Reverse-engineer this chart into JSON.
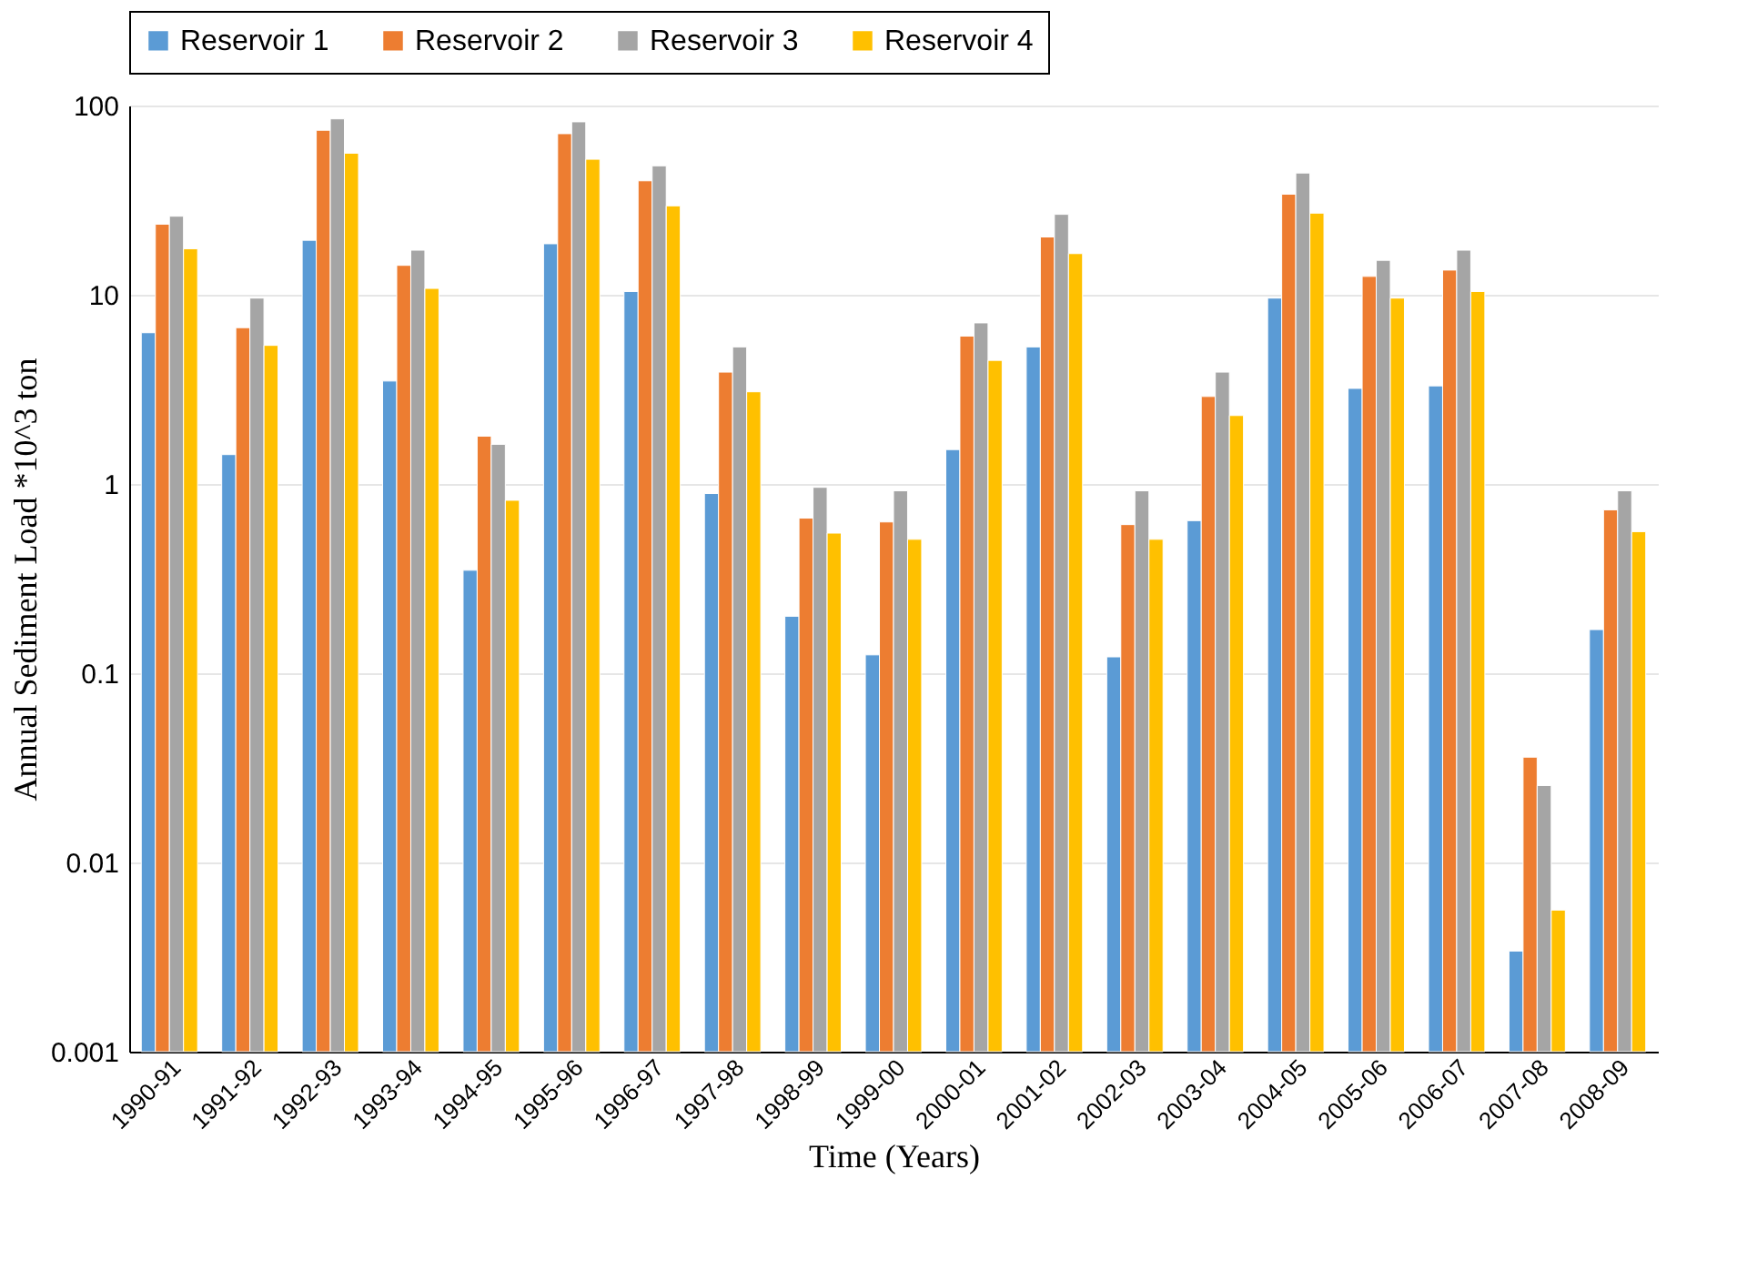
{
  "chart_data": {
    "type": "bar",
    "xlabel": "Time (Years)",
    "ylabel": "Annual Sediment  Load *10^3 ton",
    "categories": [
      "1990-91",
      "1991-92",
      "1992-93",
      "1993-94",
      "1994-95",
      "1995-96",
      "1996-97",
      "1997-98",
      "1998-99",
      "1999-00",
      "2000-01",
      "2001-02",
      "2002-03",
      "2003-04",
      "2004-05",
      "2005-06",
      "2006-07",
      "2007-08",
      "2008-09"
    ],
    "series": [
      {
        "name": "Reservoir 1",
        "color": "#5b9bd5",
        "values": [
          6.3,
          1.43,
          19.4,
          3.5,
          0.35,
          18.6,
          10.4,
          0.89,
          0.2,
          0.125,
          1.52,
          5.3,
          0.122,
          0.64,
          9.6,
          3.2,
          3.3,
          0.0034,
          0.17
        ]
      },
      {
        "name": "Reservoir 2",
        "color": "#ed7d31",
        "values": [
          23.6,
          6.7,
          74,
          14.3,
          1.79,
          71,
          40,
          3.9,
          0.66,
          0.63,
          6.05,
          20.2,
          0.61,
          2.9,
          34,
          12.5,
          13.5,
          0.036,
          0.73
        ]
      },
      {
        "name": "Reservoir 3",
        "color": "#a5a5a5",
        "values": [
          26,
          9.6,
          85,
          17.2,
          1.62,
          82,
          48,
          5.3,
          0.96,
          0.92,
          7.1,
          26.6,
          0.92,
          3.9,
          44,
          15.2,
          17.2,
          0.0255,
          0.92
        ]
      },
      {
        "name": "Reservoir 4",
        "color": "#ffc000",
        "values": [
          17.5,
          5.4,
          56,
          10.8,
          0.82,
          52,
          29.5,
          3.07,
          0.55,
          0.51,
          4.5,
          16.5,
          0.51,
          2.3,
          27,
          9.6,
          10.4,
          0.0056,
          0.56
        ]
      }
    ],
    "log": "y",
    "ylim": [
      0.001,
      100
    ],
    "yticks": [
      0.001,
      0.01,
      0.1,
      1,
      10,
      100
    ],
    "grid": "y",
    "legend": "top"
  }
}
